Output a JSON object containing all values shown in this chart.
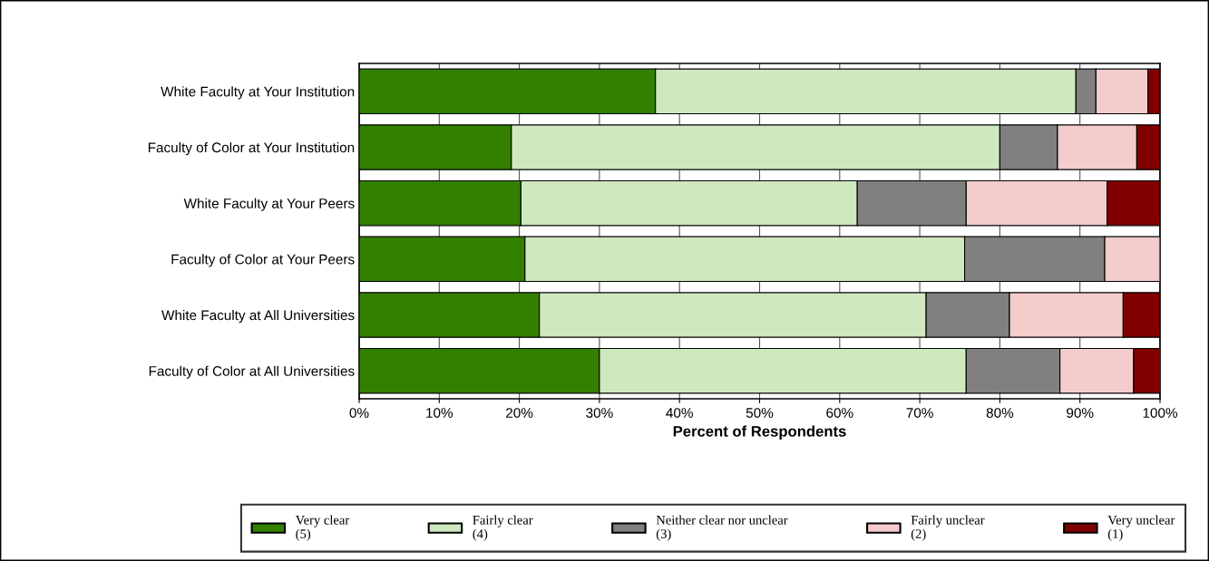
{
  "chart_data": {
    "type": "bar",
    "orientation": "horizontal",
    "stacked": true,
    "xlabel": "Percent of Respondents",
    "categories": [
      "White Faculty at Your Institution",
      "Faculty of Color at Your Institution",
      "White Faculty at Your Peers",
      "Faculty of Color at Your Peers",
      "White Faculty at All Universities",
      "Faculty of Color at All Universities"
    ],
    "series": [
      {
        "name": "Very clear\n(5)",
        "color": "#338000",
        "values": [
          37,
          19,
          20.2,
          20.7,
          22.5,
          30
        ]
      },
      {
        "name": "Fairly clear\n(4)",
        "color": "#cfe8bf",
        "values": [
          52.5,
          61,
          42,
          54.9,
          48.3,
          45.8
        ]
      },
      {
        "name": "Neither clear nor unclear\n(3)",
        "color": "#808080",
        "values": [
          2.5,
          7.2,
          13.6,
          17.5,
          10.4,
          11.7
        ]
      },
      {
        "name": "Fairly unclear\n(2)",
        "color": "#f4cccc",
        "values": [
          6.5,
          9.9,
          17.6,
          6.9,
          14.2,
          9.2
        ]
      },
      {
        "name": "Very unclear\n(1)",
        "color": "#800000",
        "values": [
          1.5,
          2.9,
          6.6,
          null,
          4.6,
          3.4
        ]
      }
    ],
    "xlim": [
      0,
      100
    ],
    "xticks": [
      {
        "value": 0,
        "label": "0%"
      },
      {
        "value": 10,
        "label": "10%"
      },
      {
        "value": 20,
        "label": "20%"
      },
      {
        "value": 30,
        "label": "30%"
      },
      {
        "value": 40,
        "label": "40%"
      },
      {
        "value": 50,
        "label": "50%"
      },
      {
        "value": 60,
        "label": "60%"
      },
      {
        "value": 70,
        "label": "70%"
      },
      {
        "value": 80,
        "label": "80%"
      },
      {
        "value": 90,
        "label": "90%"
      },
      {
        "value": 100,
        "label": "100%"
      }
    ],
    "grid": "x",
    "legend": "bottom"
  }
}
